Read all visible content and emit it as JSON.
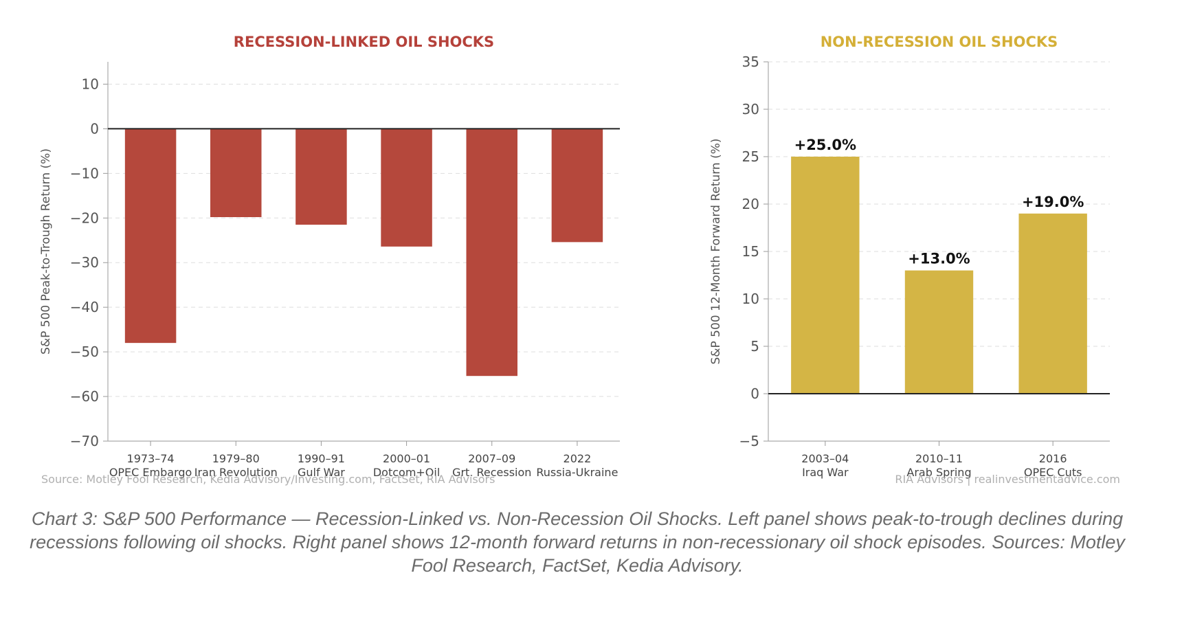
{
  "chart_data": [
    {
      "type": "bar",
      "title": "RECESSION-LINKED OIL SHOCKS",
      "ylabel": "S&P 500 Peak-to-Trough Return (%)",
      "ylim": [
        -70,
        15
      ],
      "yticks": [
        10,
        0,
        -10,
        -20,
        -30,
        -40,
        -50,
        -60,
        -70
      ],
      "ytick_labels": [
        "10",
        "0",
        "−10",
        "−20",
        "−30",
        "−40",
        "−50",
        "−60",
        "−70"
      ],
      "categories": [
        [
          "1973–74",
          "OPEC Embargo"
        ],
        [
          "1979–80",
          "Iran Revolution"
        ],
        [
          "1990–91",
          "Gulf War"
        ],
        [
          "2000–01",
          "Dotcom+Oil"
        ],
        [
          "2007–09",
          "Grt. Recession"
        ],
        [
          "2022",
          "Russia-Ukraine"
        ]
      ],
      "values": [
        -48,
        -19.8,
        -21.5,
        -26.4,
        -55.4,
        -25.4
      ],
      "color": "#b5483c",
      "title_color": "#b5413a",
      "grid": true,
      "source": "Source: Motley Fool Research, Kedia Advisory/Investing.com, FactSet, RIA Advisors"
    },
    {
      "type": "bar",
      "title": "NON-RECESSION OIL SHOCKS",
      "ylabel": "S&P 500 12-Month Forward Return (%)",
      "ylim": [
        -5,
        35
      ],
      "yticks": [
        35,
        30,
        25,
        20,
        15,
        10,
        5,
        0,
        -5
      ],
      "ytick_labels": [
        "35",
        "30",
        "25",
        "20",
        "15",
        "10",
        "5",
        "0",
        "−5"
      ],
      "categories": [
        [
          "2003–04",
          "Iraq War"
        ],
        [
          "2010–11",
          "Arab Spring"
        ],
        [
          "2016",
          "OPEC Cuts"
        ]
      ],
      "values": [
        25.0,
        13.0,
        19.0
      ],
      "data_labels": [
        "+25.0%",
        "+13.0%",
        "+19.0%"
      ],
      "color": "#d4b545",
      "title_color": "#d4af37",
      "grid": true,
      "source": "RIA Advisors | realinvestmentadvice.com"
    }
  ],
  "caption": "Chart 3: S&P 500 Performance — Recession-Linked vs. Non-Recession Oil Shocks. Left panel shows peak-to-trough declines during recessions following oil shocks. Right panel shows 12-month forward returns in non-recessionary oil shock episodes. Sources: Motley Fool Research, FactSet, Kedia Advisory."
}
